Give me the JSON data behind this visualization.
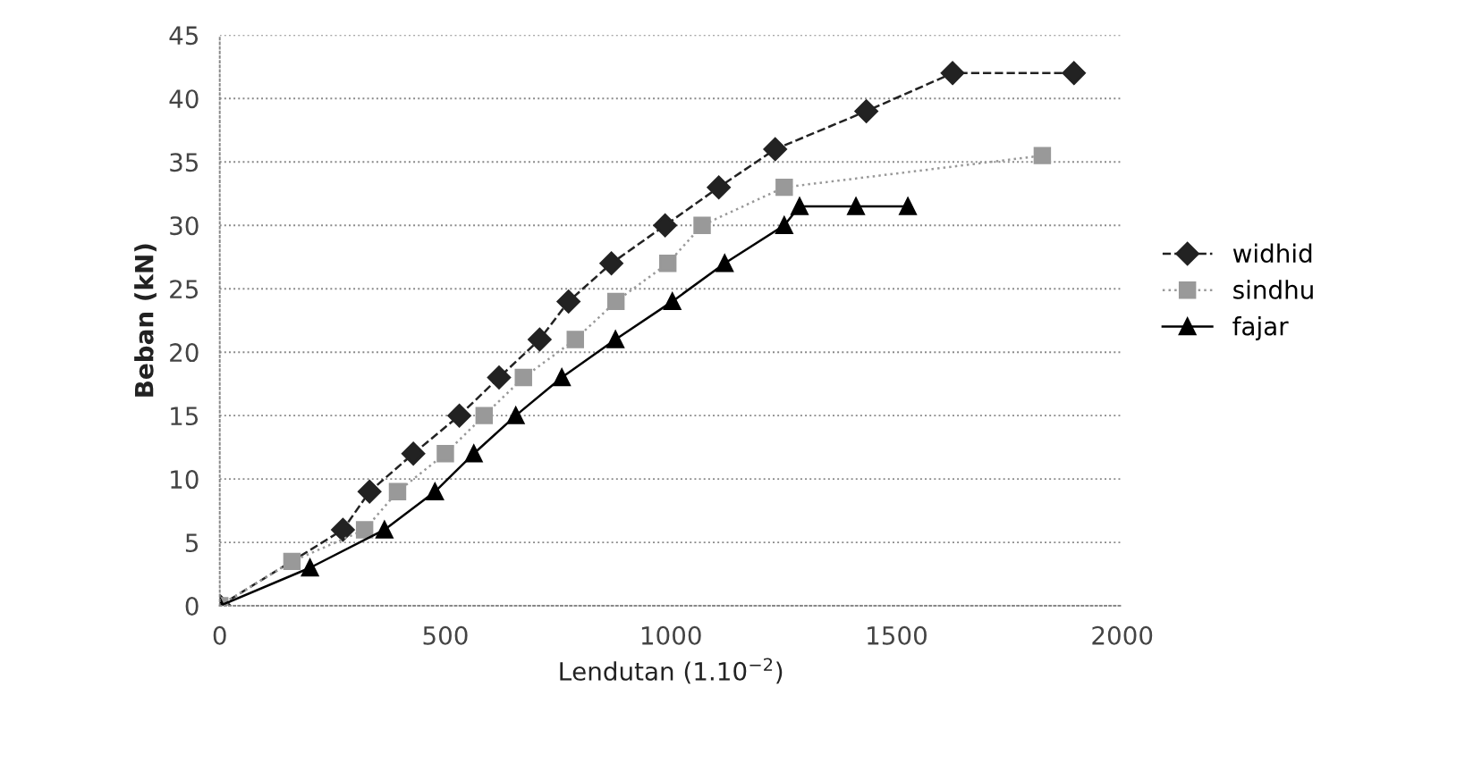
{
  "chart_data": {
    "type": "line",
    "xlabel": "Lendutan (1.10$^{−2}$)",
    "ylabel": "Beban (kN)",
    "xlim": [
      0,
      2000
    ],
    "ylim": [
      0,
      45
    ],
    "xticks": [
      0,
      500,
      1000,
      1500,
      2000
    ],
    "yticks": [
      0,
      5,
      10,
      15,
      20,
      25,
      30,
      35,
      40,
      45
    ],
    "grid": "y",
    "legend": "right",
    "series": [
      {
        "name": "widhid",
        "color": "#222222",
        "marker": "diamond",
        "line_style": "dashed",
        "x": [
          0,
          273,
          332,
          429,
          531,
          619,
          709,
          773,
          868,
          987,
          1106,
          1231,
          1433,
          1624,
          1893
        ],
        "values": [
          0,
          6,
          9,
          12,
          15,
          18,
          21,
          24,
          27,
          30,
          33,
          36,
          39,
          42,
          42
        ]
      },
      {
        "name": "sindhu",
        "color": "#999999",
        "marker": "square",
        "line_style": "dotted",
        "x": [
          0,
          160,
          321,
          394,
          500,
          586,
          673,
          788,
          878,
          993,
          1069,
          1251,
          1823
        ],
        "values": [
          0,
          3.5,
          6,
          9,
          12,
          15,
          18,
          21,
          24,
          27,
          30,
          33,
          35.5
        ]
      },
      {
        "name": "fajar",
        "color": "#000000",
        "marker": "triangle",
        "line_style": "solid",
        "x": [
          0,
          200,
          365,
          477,
          563,
          656,
          758,
          877,
          1003,
          1119,
          1251,
          1285,
          1410,
          1525
        ],
        "values": [
          0,
          3,
          6,
          9,
          12,
          15,
          18,
          21,
          24,
          27,
          30,
          31.5,
          31.5,
          31.5
        ]
      }
    ]
  }
}
